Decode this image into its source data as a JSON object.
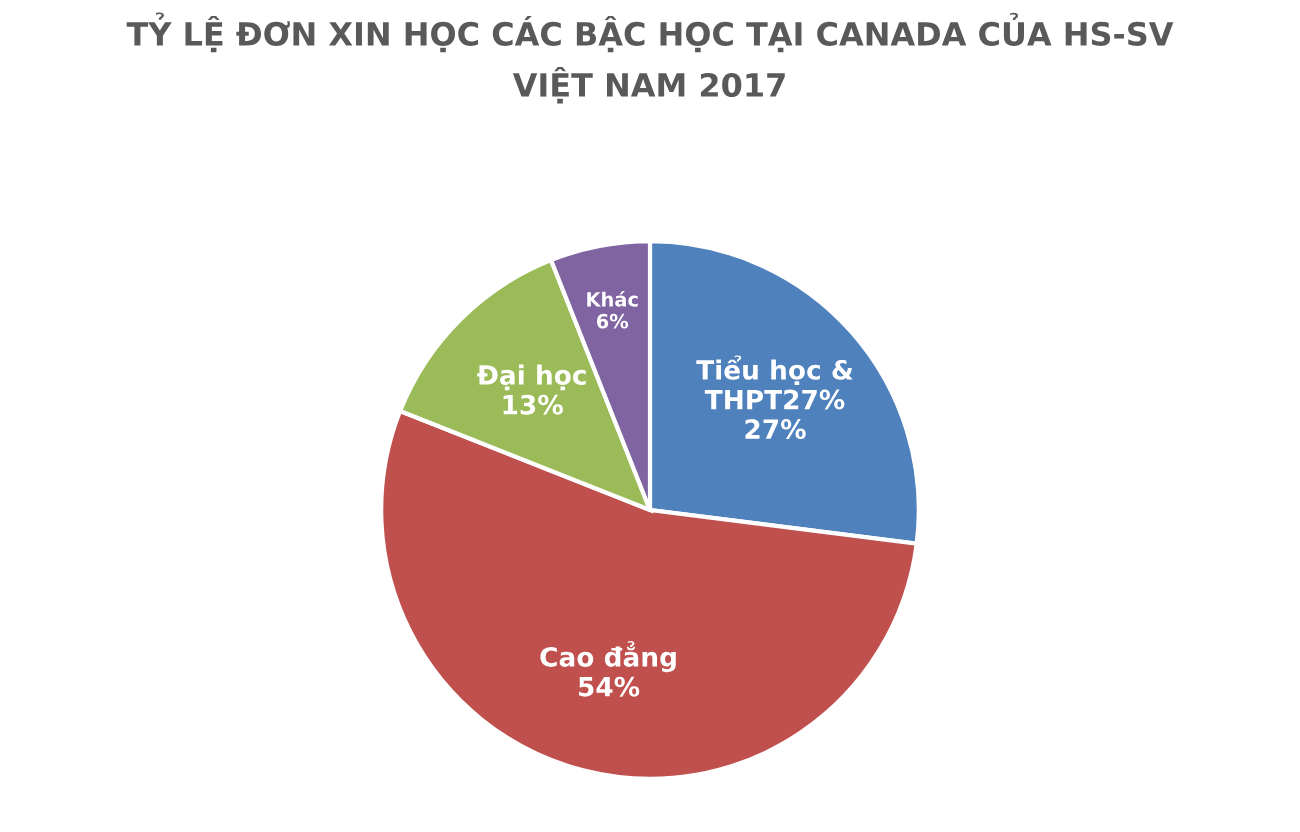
{
  "chart_data": {
    "type": "pie",
    "title": "TỶ LỆ ĐƠN XIN HỌC CÁC BẬC HỌC TẠI CANADA CỦA HS-SV\nVIỆT NAM 2017",
    "categories": [
      "Tiểu học &\nTHPT27%",
      "Cao đẳng",
      "Đại học",
      "Khác"
    ],
    "values": [
      27,
      54,
      13,
      6
    ],
    "value_labels": [
      "27%",
      "54%",
      "13%",
      "6%"
    ],
    "colors": [
      "#4f81bd",
      "#c0504d",
      "#9bbb59",
      "#8064a2"
    ],
    "legend": false
  }
}
